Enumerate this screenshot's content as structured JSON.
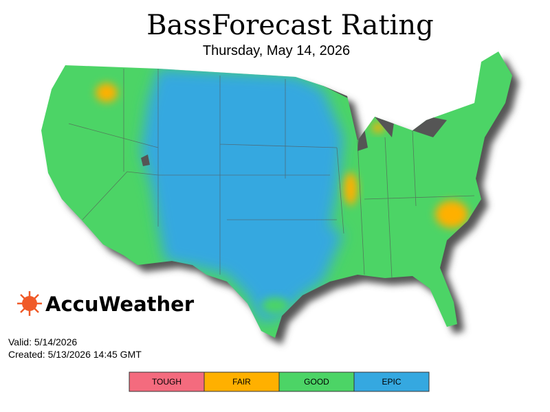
{
  "header": {
    "title": "BassForecast Rating",
    "subtitle": "Thursday, May 14, 2026"
  },
  "brand": "AccuWeather",
  "info": {
    "valid": "Valid: 5/14/2026",
    "created": "Created: 5/13/2026 14:45 GMT"
  },
  "legend": [
    {
      "label": "TOUGH",
      "color": "#f46b7e"
    },
    {
      "label": "FAIR",
      "color": "#ffb000"
    },
    {
      "label": "GOOD",
      "color": "#4cd466"
    },
    {
      "label": "EPIC",
      "color": "#35a8e0"
    }
  ]
}
